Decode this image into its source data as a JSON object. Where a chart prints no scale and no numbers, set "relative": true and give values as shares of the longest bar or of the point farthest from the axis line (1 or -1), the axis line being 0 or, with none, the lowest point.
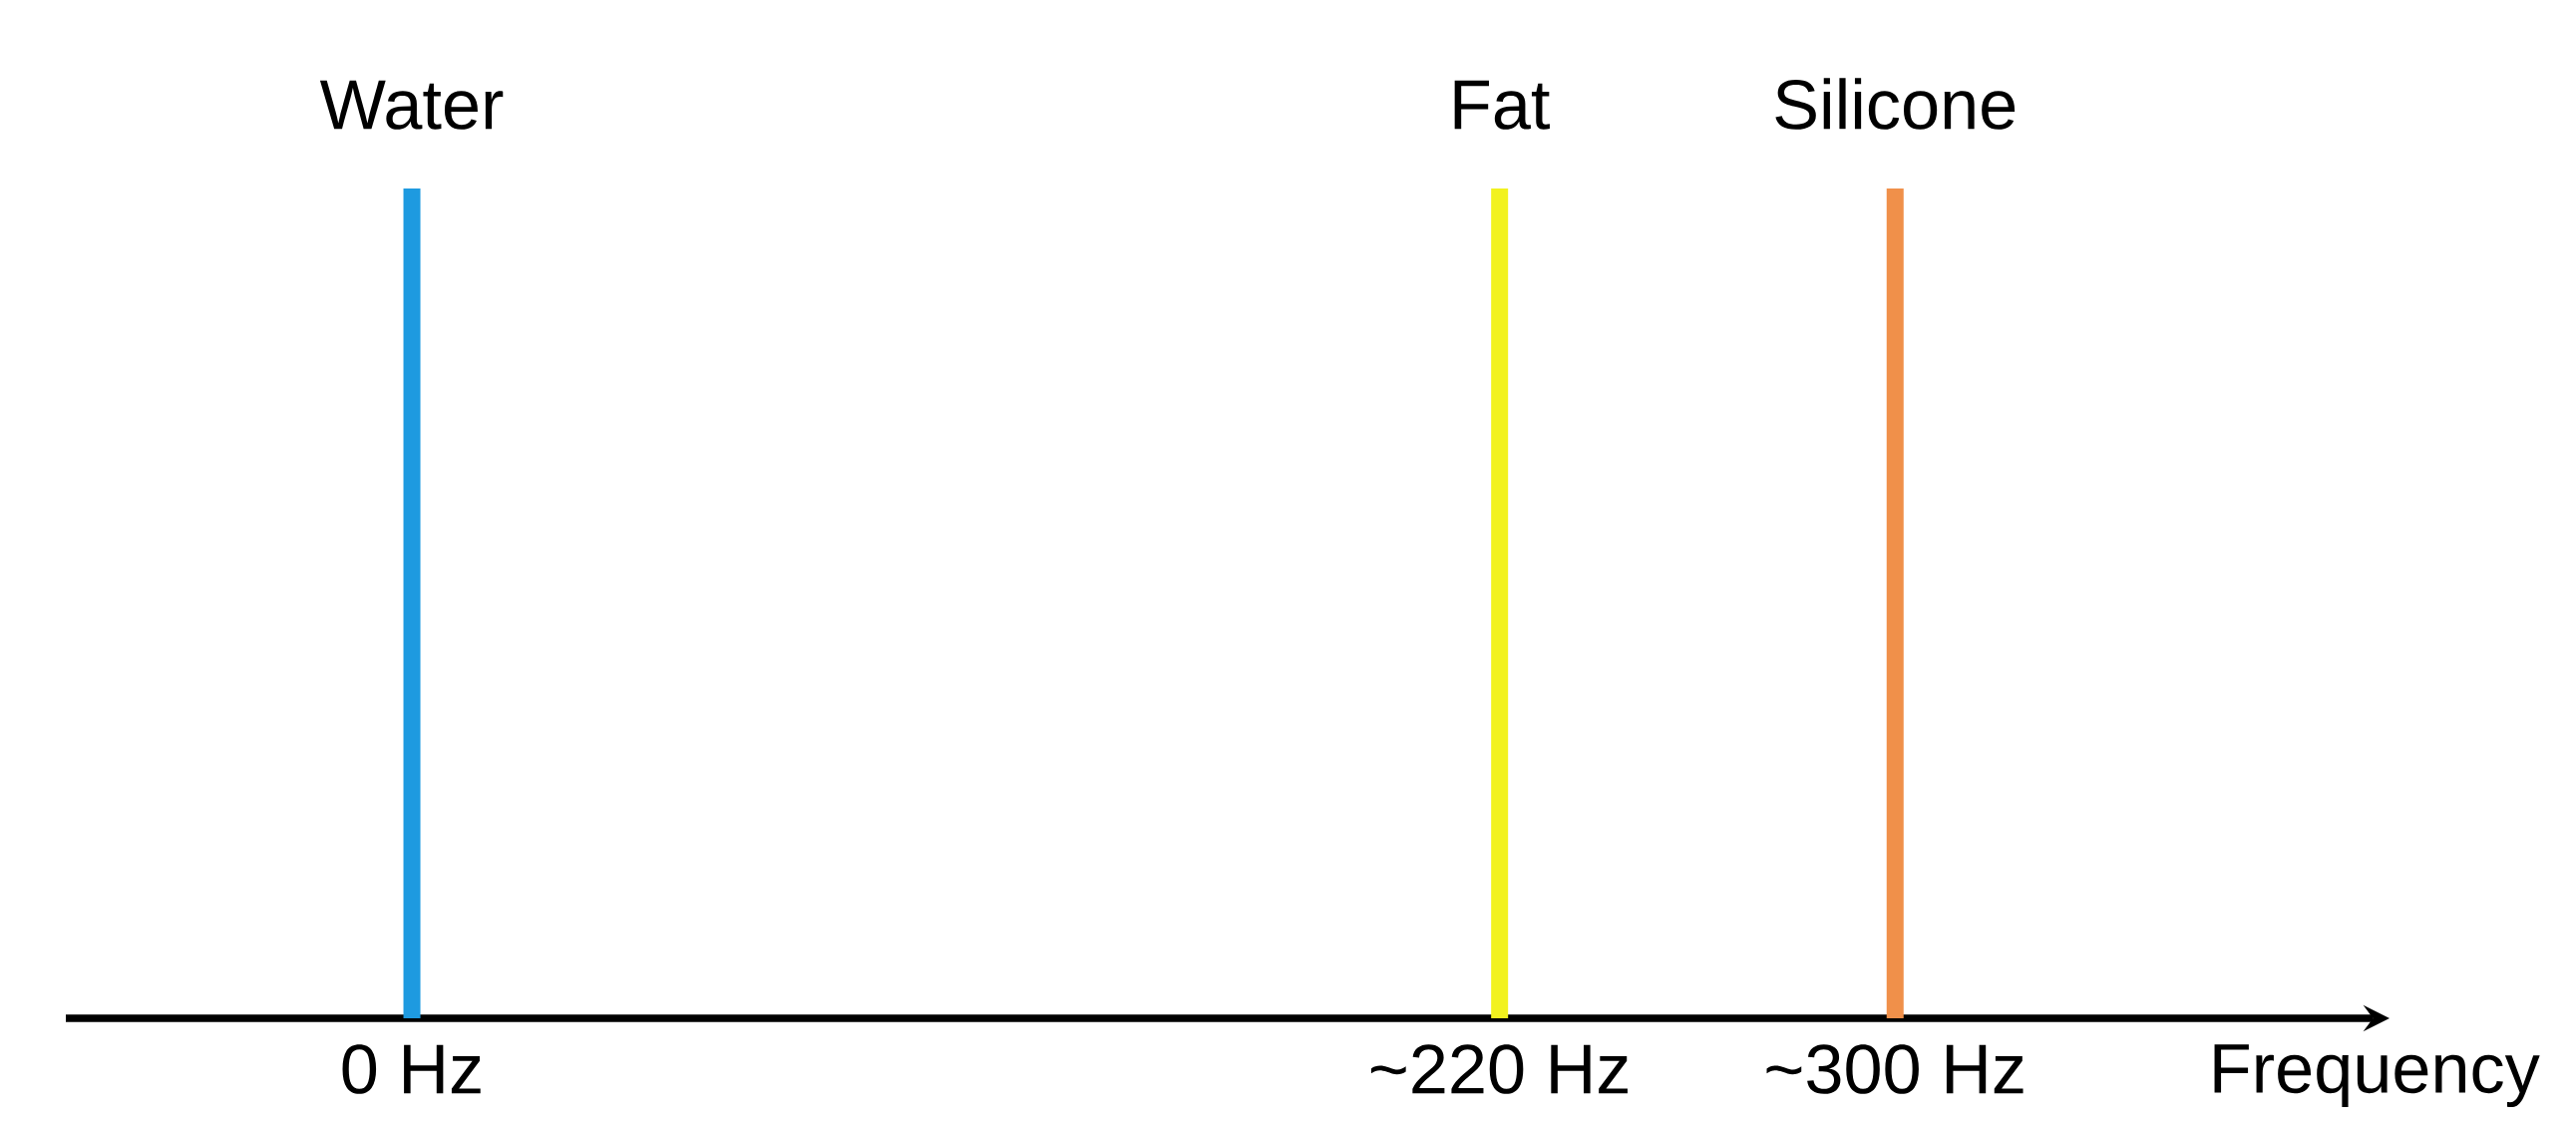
{
  "chart_data": {
    "type": "bar",
    "relative": true,
    "xlabel": "Frequency",
    "xlim": [
      -70,
      400
    ],
    "xticks": [
      {
        "value": 0,
        "label": "0 Hz"
      },
      {
        "value": 220,
        "label": "~220 Hz"
      },
      {
        "value": 300,
        "label": "~300 Hz"
      }
    ],
    "series": [
      {
        "name": "Water",
        "color": "#1e9ae0",
        "x": [
          0
        ],
        "values": [
          1
        ]
      },
      {
        "name": "Fat",
        "color": "#f2f21e",
        "x": [
          220
        ],
        "values": [
          1
        ]
      },
      {
        "name": "Silicone",
        "color": "#f0904a",
        "x": [
          300
        ],
        "values": [
          1
        ]
      }
    ]
  }
}
